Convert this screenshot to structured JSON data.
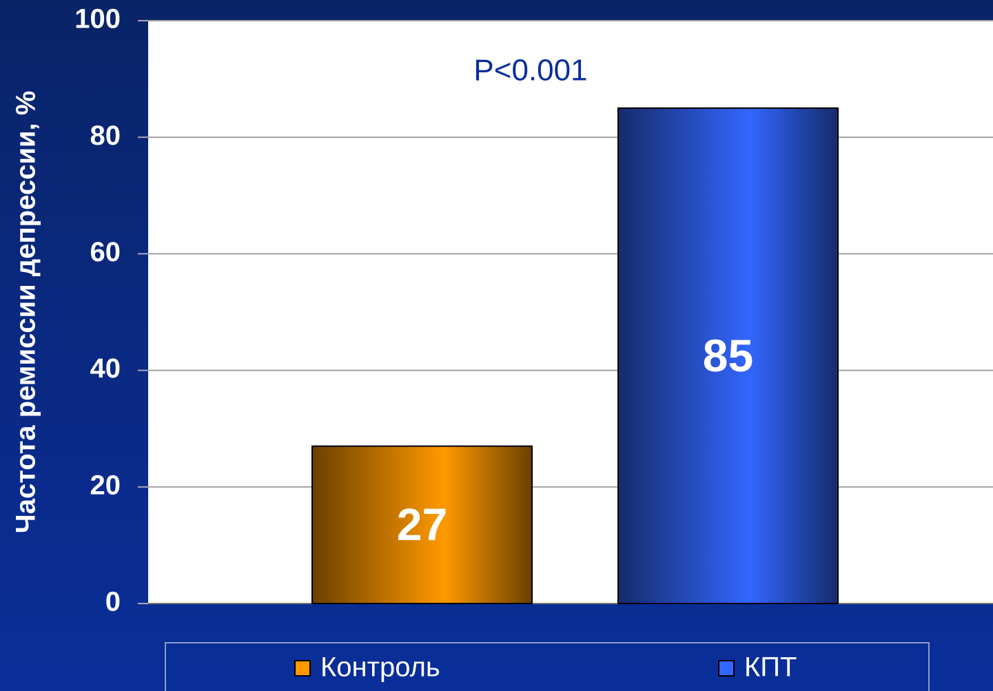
{
  "chart_data": {
    "type": "bar",
    "y_label": "Частота ремиссии депрессии, %",
    "annotation": "P<0.001",
    "categories": [
      null
    ],
    "series": [
      {
        "name": "Контроль",
        "color": "#ff9900",
        "values": [
          27
        ]
      },
      {
        "name": "КПТ",
        "color": "#3366ff",
        "values": [
          85
        ]
      }
    ],
    "ylim": [
      0,
      100
    ],
    "yticks": [
      0,
      20,
      40,
      60,
      80,
      100
    ],
    "grid": true
  }
}
